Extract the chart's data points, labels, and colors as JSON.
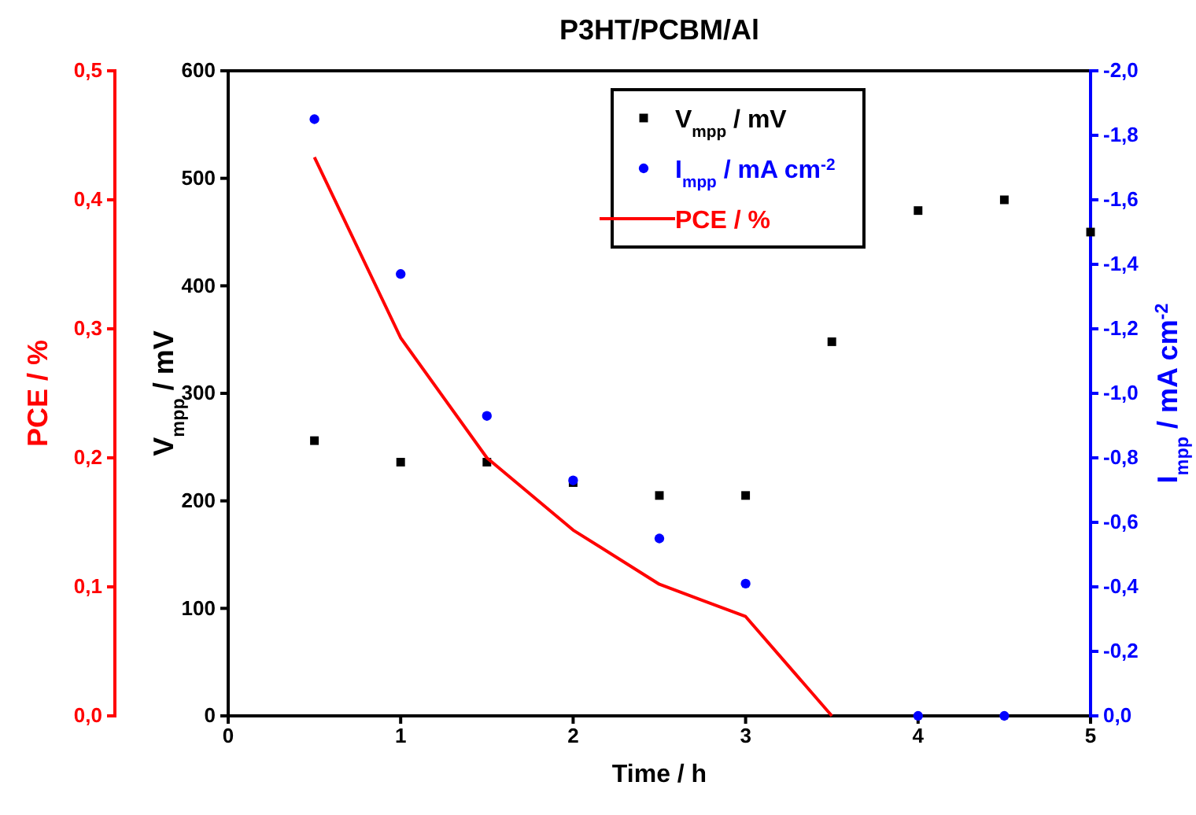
{
  "chart_data": {
    "type": "scatter",
    "title": "P3HT/PCBM/Al",
    "xlabel": "Time / h",
    "ylabel": "V$_{mpp}$ / mV",
    "y2label": "I$_{mpp}$ / mA cm$^{-2}$",
    "y3label": "PCE / %",
    "xlim": [
      0,
      5
    ],
    "xticks": [
      0,
      1,
      2,
      3,
      4,
      5
    ],
    "ylim": [
      0,
      600
    ],
    "yticks": [
      0,
      100,
      200,
      300,
      400,
      500,
      600
    ],
    "y2lim": [
      0,
      -2.0
    ],
    "y2ticks": [
      {
        "value": 0,
        "label": "0,0"
      },
      {
        "value": -0.2,
        "label": "-0,2"
      },
      {
        "value": -0.4,
        "label": "-0,4"
      },
      {
        "value": -0.6,
        "label": "-0,6"
      },
      {
        "value": -0.8,
        "label": "-0,8"
      },
      {
        "value": -1.0,
        "label": "-1,0"
      },
      {
        "value": -1.2,
        "label": "-1,2"
      },
      {
        "value": -1.4,
        "label": "-1,4"
      },
      {
        "value": -1.6,
        "label": "-1,6"
      },
      {
        "value": -1.8,
        "label": "-1,8"
      },
      {
        "value": -2.0,
        "label": "-2,0"
      }
    ],
    "y3lim": [
      0,
      0.5
    ],
    "y3ticks": [
      {
        "value": 0,
        "label": "0,0"
      },
      {
        "value": 0.1,
        "label": "0,1"
      },
      {
        "value": 0.2,
        "label": "0,2"
      },
      {
        "value": 0.3,
        "label": "0,3"
      },
      {
        "value": 0.4,
        "label": "0,4"
      },
      {
        "value": 0.5,
        "label": "0,5"
      }
    ],
    "legend": "top right",
    "series": [
      {
        "name": "V$_{mpp}$ / mV",
        "marker": "square",
        "color": "#000000",
        "x": [
          0.5,
          1.0,
          1.5,
          2.0,
          2.5,
          3.0,
          3.5,
          4.0,
          4.5,
          5.0
        ],
        "values": [
          256,
          236,
          236,
          217,
          205,
          205,
          348,
          470,
          480,
          450
        ]
      },
      {
        "name": "I$_{mpp}$ / mA cm$^{-2}$",
        "marker": "circle",
        "axis": "y2",
        "color": "#0000ff",
        "x": [
          0.5,
          1.0,
          1.5,
          2.0,
          2.5,
          3.0,
          4.0,
          4.5
        ],
        "values": [
          -1.85,
          -1.37,
          -0.93,
          -0.73,
          -0.55,
          -0.41,
          0,
          0
        ]
      },
      {
        "name": "PCE / %",
        "type": "line",
        "marker": "none",
        "axis": "y3",
        "color": "#ff0000",
        "x": [
          0.5,
          1.0,
          1.5,
          2.0,
          2.5,
          3.0,
          3.5
        ],
        "values": [
          0.433,
          0.293,
          0.2,
          0.144,
          0.102,
          0.077,
          0
        ]
      }
    ]
  }
}
